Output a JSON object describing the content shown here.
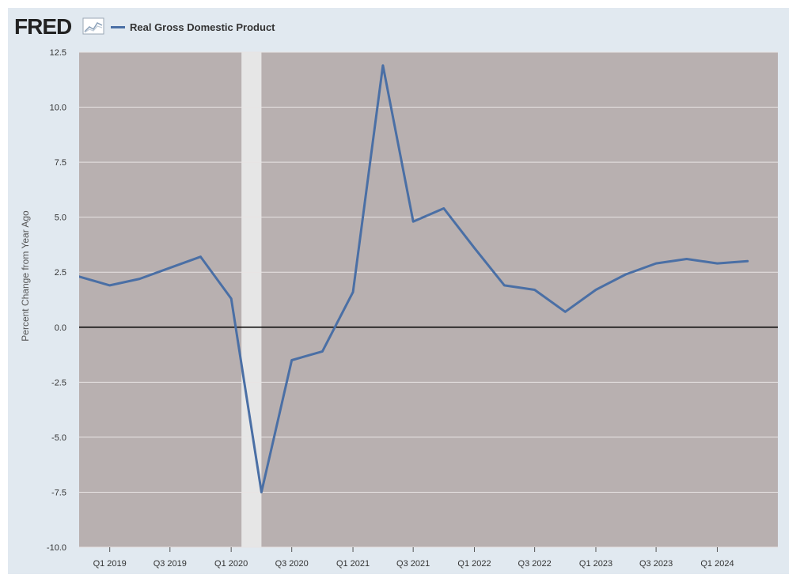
{
  "header": {
    "logo_text": "FRED",
    "legend_label": "Real Gross Domestic Product"
  },
  "colors": {
    "series": "#4a6fa5",
    "plot_background": "#b8b0b0",
    "recession_band": "#e6e6e6",
    "frame_background": "#e1e9f0",
    "gridline": "#e8e4e4",
    "zero_line": "#000000"
  },
  "icons": [
    "fred-chart-icon"
  ],
  "chart_data": {
    "type": "line",
    "title": "",
    "xlabel": "",
    "ylabel": "Percent Change from Year Ago",
    "ylim": [
      -10.0,
      12.5
    ],
    "yticks": [
      "12.5",
      "10.0",
      "7.5",
      "5.0",
      "2.5",
      "0.0",
      "-2.5",
      "-5.0",
      "-7.5",
      "-10.0"
    ],
    "ytick_values": [
      12.5,
      10.0,
      7.5,
      5.0,
      2.5,
      0.0,
      -2.5,
      -5.0,
      -7.5,
      -10.0
    ],
    "xlim": [
      "2018-10-01",
      "2024-07-01"
    ],
    "xticks": [
      {
        "label": "Q1 2019",
        "date": "2019-01-01"
      },
      {
        "label": "Q3 2019",
        "date": "2019-07-01"
      },
      {
        "label": "Q1 2020",
        "date": "2020-01-01"
      },
      {
        "label": "Q3 2020",
        "date": "2020-07-01"
      },
      {
        "label": "Q1 2021",
        "date": "2021-01-01"
      },
      {
        "label": "Q3 2021",
        "date": "2021-07-01"
      },
      {
        "label": "Q1 2022",
        "date": "2022-01-01"
      },
      {
        "label": "Q3 2022",
        "date": "2022-07-01"
      },
      {
        "label": "Q1 2023",
        "date": "2023-01-01"
      },
      {
        "label": "Q3 2023",
        "date": "2023-07-01"
      },
      {
        "label": "Q1 2024",
        "date": "2024-01-01"
      }
    ],
    "recession": {
      "start": "2020-02-01",
      "end": "2020-04-01"
    },
    "grid": true,
    "legend": "top-left",
    "series": [
      {
        "name": "Real Gross Domestic Product",
        "x": [
          "2018-10-01",
          "2019-01-01",
          "2019-04-01",
          "2019-07-01",
          "2019-10-01",
          "2020-01-01",
          "2020-04-01",
          "2020-07-01",
          "2020-10-01",
          "2021-01-01",
          "2021-04-01",
          "2021-07-01",
          "2021-10-01",
          "2022-01-01",
          "2022-04-01",
          "2022-07-01",
          "2022-10-01",
          "2023-01-01",
          "2023-04-01",
          "2023-07-01",
          "2023-10-01",
          "2024-01-01",
          "2024-04-01"
        ],
        "y": [
          2.3,
          1.9,
          2.2,
          2.7,
          3.2,
          1.3,
          -7.5,
          -1.5,
          -1.1,
          1.6,
          11.9,
          4.8,
          5.4,
          3.6,
          1.9,
          1.7,
          0.7,
          1.7,
          2.4,
          2.9,
          3.1,
          2.9,
          3.0
        ]
      }
    ]
  }
}
